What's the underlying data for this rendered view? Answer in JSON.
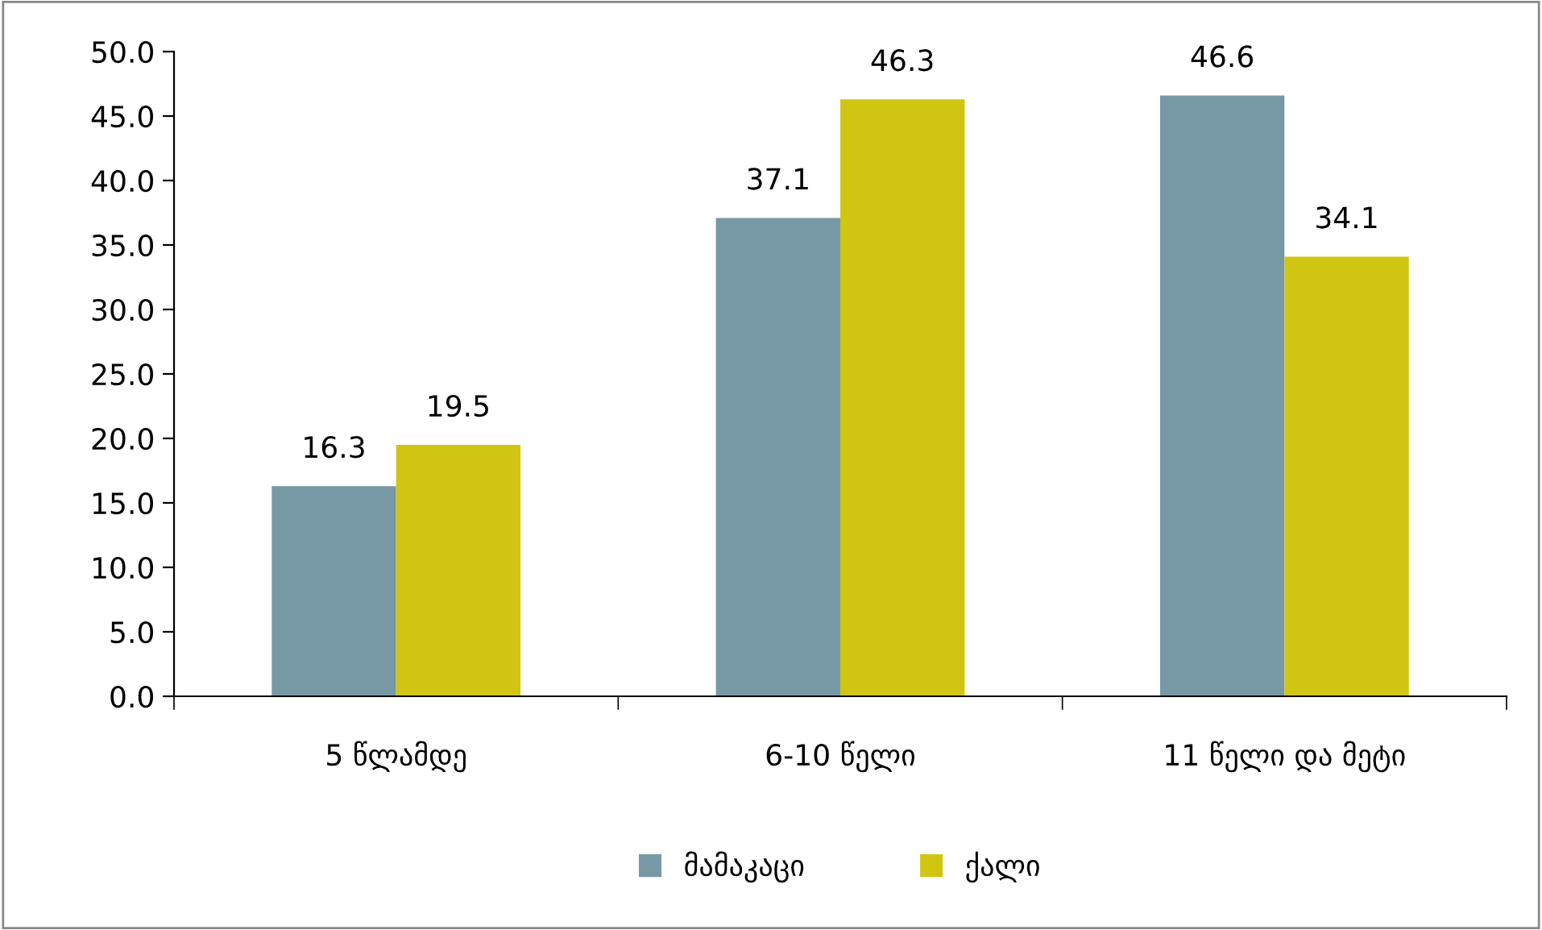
{
  "chart_data": {
    "type": "bar",
    "categories": [
      "5 წლამდე",
      "6-10 წელი",
      "11 წელი და მეტი"
    ],
    "series": [
      {
        "name": "მამაკაცი",
        "color": "#7799a5",
        "values": [
          16.3,
          37.1,
          46.6
        ]
      },
      {
        "name": "ქალი",
        "color": "#d0c512",
        "values": [
          19.5,
          46.3,
          34.1
        ]
      }
    ],
    "ylim": [
      0,
      50
    ],
    "yticks": [
      {
        "value": 0,
        "label": "0.0"
      },
      {
        "value": 5,
        "label": "5.0"
      },
      {
        "value": 10,
        "label": "10.0"
      },
      {
        "value": 15,
        "label": "15.0"
      },
      {
        "value": 20,
        "label": "20.0"
      },
      {
        "value": 25,
        "label": "25.0"
      },
      {
        "value": 30,
        "label": "30.0"
      },
      {
        "value": 35,
        "label": "35.0"
      },
      {
        "value": 40,
        "label": "40.0"
      },
      {
        "value": 45,
        "label": "45.0"
      },
      {
        "value": 50,
        "label": "50.0"
      }
    ],
    "data_labels": true,
    "grid": false,
    "legend": "bottom"
  }
}
